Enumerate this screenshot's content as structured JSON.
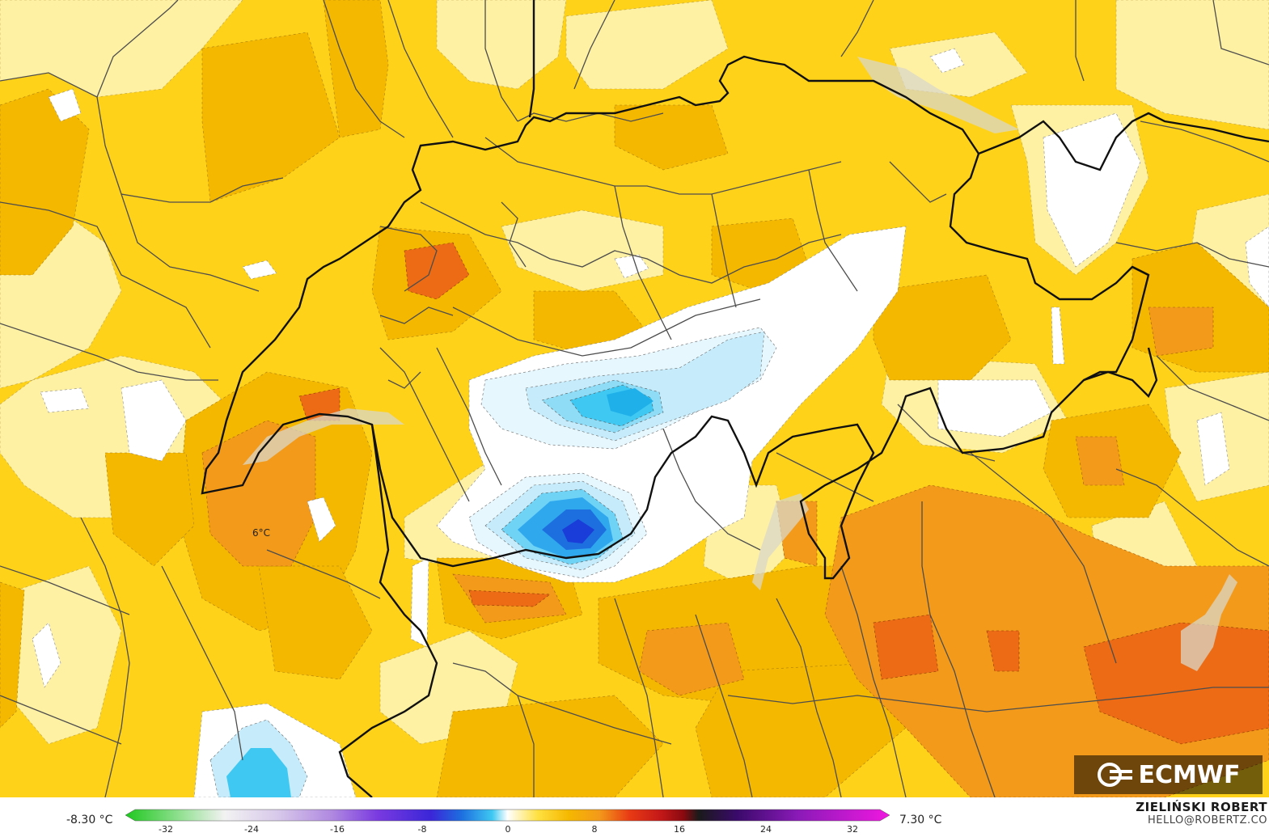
{
  "map": {
    "point_label": "6°C"
  },
  "logo": {
    "text": "ECMWF",
    "icon": "ecmwf-logo-icon"
  },
  "legend": {
    "min_value": "-8.30 °C",
    "max_value": "7.30 °C",
    "ticks": [
      "-32",
      "-24",
      "-16",
      "-8",
      "0",
      "8",
      "16",
      "24",
      "32"
    ],
    "colors": {
      "pale_yellow": "#fff1a3",
      "yellow": "#ffd21a",
      "gold": "#f5b800",
      "orange": "#f39a1a",
      "dark_orange": "#ec6b14",
      "light_blue": "#c6ecfb",
      "blue": "#3ec8f2",
      "deep_blue": "#1a3cd8"
    }
  },
  "credit": {
    "author": "ZIELIŃSKI ROBERT",
    "email": "HELLO@ROBERTZ.CO"
  }
}
